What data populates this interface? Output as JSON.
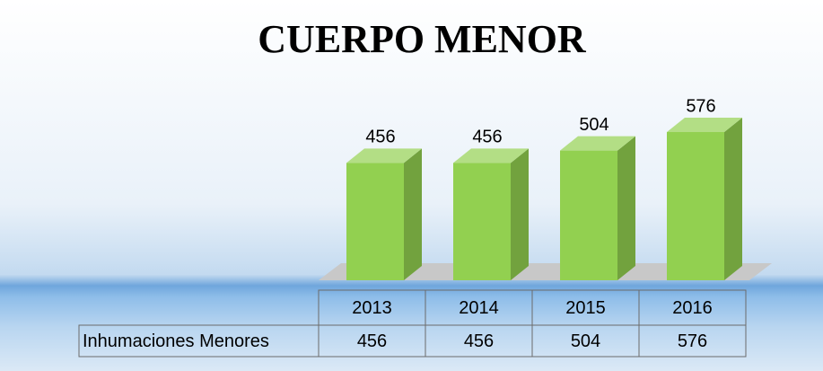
{
  "chart_data": {
    "type": "bar",
    "title": "CUERPO MENOR",
    "categories": [
      "2013",
      "2014",
      "2015",
      "2016"
    ],
    "series": [
      {
        "name": "Inhumaciones Menores",
        "color": "#92d050",
        "values": [
          456,
          456,
          504,
          576
        ]
      }
    ]
  }
}
